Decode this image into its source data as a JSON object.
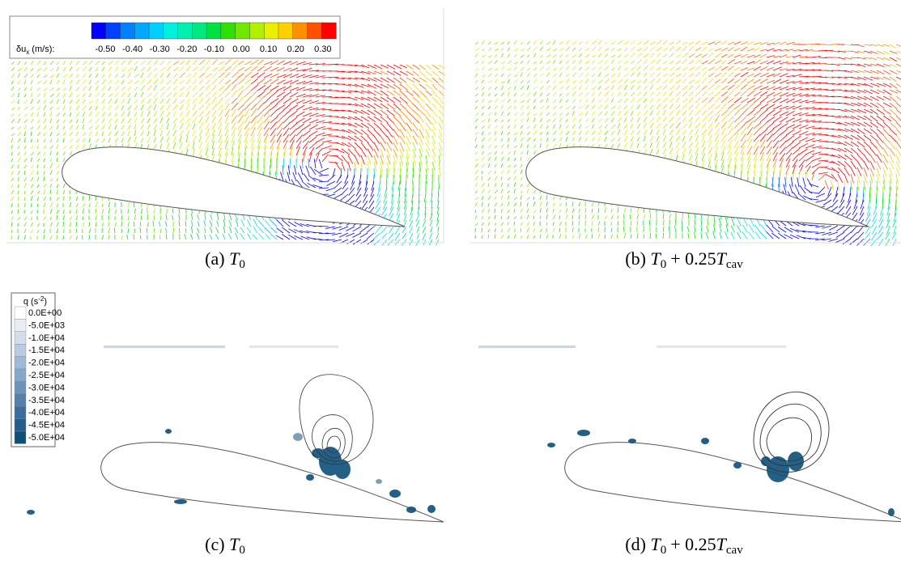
{
  "panels": [
    {
      "caption": [
        "(a)",
        "T",
        "0"
      ],
      "colorbar": {
        "label": [
          "δu",
          "x",
          " (m/s):"
        ],
        "ticks": [
          "-0.50",
          "-0.40",
          "-0.30",
          "-0.20",
          "-0.10",
          "0.00",
          "0.10",
          "0.20",
          "0.30"
        ],
        "colors": [
          "#0000ff",
          "#0040ff",
          "#0080ff",
          "#00a8ff",
          "#00d0ff",
          "#00f0e0",
          "#00f0b0",
          "#00e880",
          "#00e040",
          "#30e000",
          "#70e800",
          "#b0f000",
          "#e8f000",
          "#ffd000",
          "#ff9000",
          "#ff5000",
          "#ff0000"
        ]
      }
    },
    {
      "caption": [
        "(b)",
        "T",
        "0",
        "+ 0.25",
        "T",
        "cav"
      ]
    },
    {
      "caption": [
        "(c)",
        "T",
        "0"
      ],
      "legend": {
        "title": [
          "q (s",
          "-2",
          ")"
        ],
        "levels": [
          "0.0E+00",
          "-5.0E+03",
          "-1.0E+04",
          "-1.5E+04",
          "-2.0E+04",
          "-2.5E+04",
          "-3.0E+04",
          "-3.5E+04",
          "-4.0E+04",
          "-4.5E+04",
          "-5.0E+04"
        ],
        "colors": [
          "#ffffff",
          "#e8edf4",
          "#d2dcea",
          "#b9cbe0",
          "#a0b9d4",
          "#86a7c8",
          "#6c94ba",
          "#5381ac",
          "#3a6d9d",
          "#245d8d",
          "#0d4f78"
        ]
      }
    },
    {
      "caption": [
        "(d)",
        "T",
        "0",
        "+ 0.25",
        "T",
        "cav"
      ]
    }
  ]
}
